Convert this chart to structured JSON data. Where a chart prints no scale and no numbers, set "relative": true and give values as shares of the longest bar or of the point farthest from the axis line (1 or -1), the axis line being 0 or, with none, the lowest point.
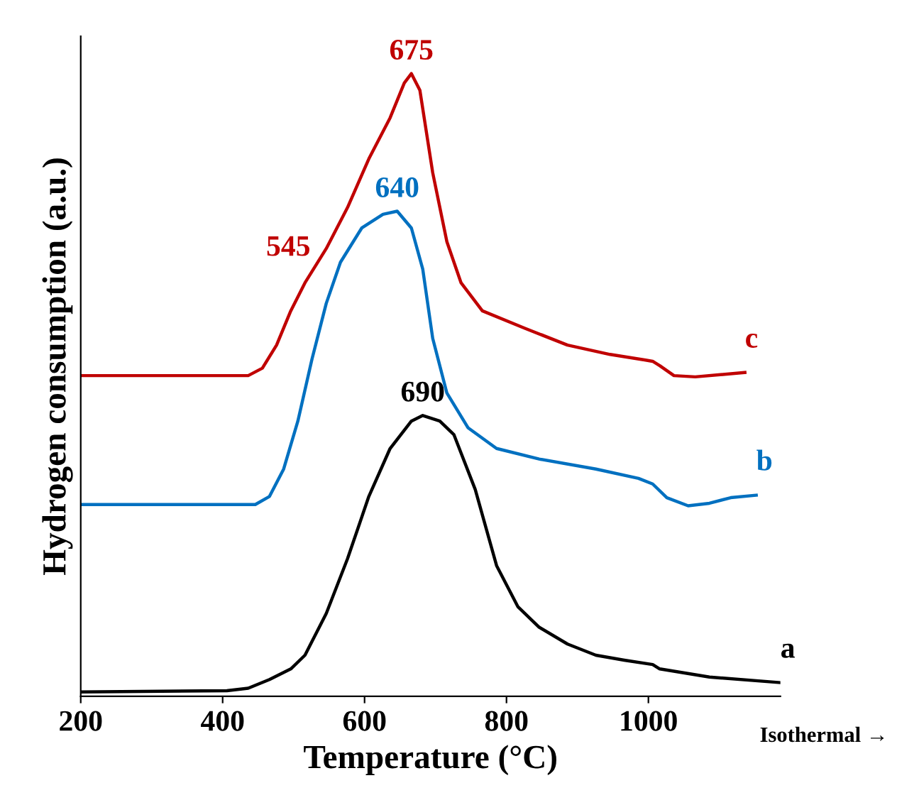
{
  "chart_data": {
    "type": "line",
    "xlabel": "Temperature (°C)",
    "ylabel": "Hydrogen consumption (a.u.)",
    "relative": true,
    "xlim": [
      200,
      1186
    ],
    "xticks": [
      200,
      400,
      600,
      800,
      1000
    ],
    "tick_labels": "x",
    "grid": false,
    "legend": false,
    "marker": "none",
    "line_style": "solid",
    "annotations": [
      {
        "text": "545",
        "x": 546,
        "y": 0.719
      },
      {
        "text": "675",
        "x": 666,
        "y": 1.0
      },
      {
        "text": "640",
        "x": 646,
        "y": 0.779
      },
      {
        "text": "690",
        "x": 682,
        "y": 0.451
      },
      "Isothermal →"
    ],
    "series": [
      {
        "name": "a",
        "color": "#000000",
        "x": [
          200,
          406,
          436,
          466,
          496,
          516,
          546,
          576,
          606,
          636,
          666,
          682,
          706,
          726,
          756,
          786,
          816,
          846,
          886,
          926,
          966,
          1006,
          1016,
          1086,
          1186
        ],
        "values": [
          0.007,
          0.009,
          0.013,
          0.027,
          0.044,
          0.066,
          0.133,
          0.221,
          0.321,
          0.398,
          0.442,
          0.451,
          0.442,
          0.42,
          0.332,
          0.21,
          0.144,
          0.111,
          0.084,
          0.066,
          0.058,
          0.051,
          0.044,
          0.031,
          0.022
        ]
      },
      {
        "name": "b",
        "color": "#0070c0",
        "x": [
          200,
          446,
          466,
          486,
          506,
          526,
          546,
          566,
          596,
          626,
          646,
          666,
          682,
          696,
          716,
          746,
          786,
          846,
          926,
          986,
          1006,
          1026,
          1056,
          1086,
          1116,
          1152
        ],
        "values": [
          0.308,
          0.308,
          0.321,
          0.365,
          0.442,
          0.542,
          0.631,
          0.697,
          0.752,
          0.774,
          0.779,
          0.752,
          0.686,
          0.575,
          0.487,
          0.431,
          0.398,
          0.381,
          0.365,
          0.35,
          0.341,
          0.319,
          0.306,
          0.31,
          0.319,
          0.323
        ]
      },
      {
        "name": "c",
        "color": "#c00000",
        "x": [
          200,
          436,
          456,
          476,
          496,
          516,
          546,
          576,
          606,
          636,
          656,
          666,
          678,
          696,
          716,
          736,
          766,
          826,
          886,
          946,
          996,
          1006,
          1016,
          1036,
          1066,
          1136
        ],
        "values": [
          0.515,
          0.515,
          0.527,
          0.564,
          0.619,
          0.664,
          0.719,
          0.785,
          0.863,
          0.929,
          0.985,
          1.0,
          0.973,
          0.841,
          0.73,
          0.664,
          0.619,
          0.591,
          0.564,
          0.549,
          0.54,
          0.538,
          0.531,
          0.515,
          0.513,
          0.52
        ]
      }
    ]
  }
}
